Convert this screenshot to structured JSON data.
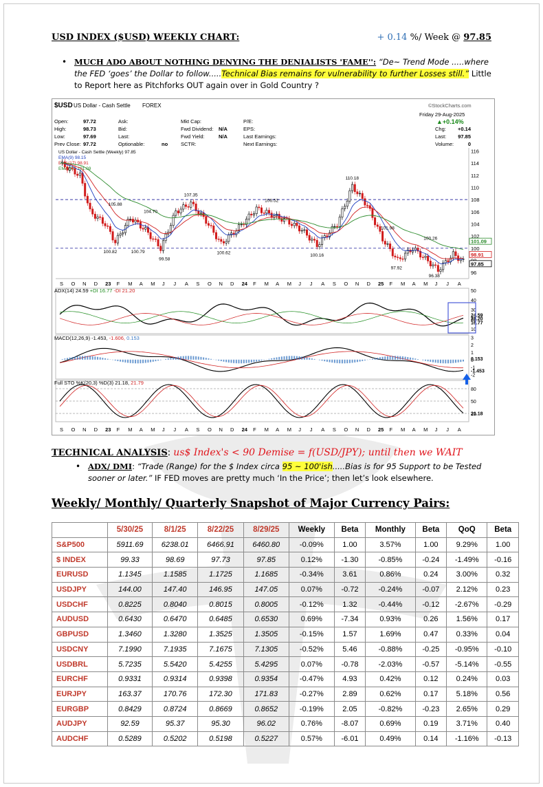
{
  "header": {
    "title": "USD INDEX ($USD) WEEKLY CHART:",
    "change": "+ 0.14",
    "change_suffix": " %/ Week @ ",
    "level": "97.85"
  },
  "intro": {
    "headline": "MUCH ADO ABOUT NOTHING DENYING THE DENIALISTS 'FAME'':",
    "text_italic_1": " “De~ Trend Mode .....where the FED ‘goes’ the Dollar to follow.....",
    "text_highlight": "Technical Bias remains for vulnerability to further Losses still.”",
    "text_plain": "  Little to Report here as Pitchforks OUT again over in Gold Country ?"
  },
  "chart": {
    "symbol": "$USD",
    "name": "US Dollar - Cash Settle",
    "exchange": "FOREX",
    "source": "©StockCharts.com",
    "date": "Friday  29-Aug-2025",
    "pct_change": "▲+0.14%",
    "quote_left": [
      {
        "label": "Open:",
        "value": "97.72"
      },
      {
        "label": "High:",
        "value": "98.73"
      },
      {
        "label": "Low:",
        "value": "97.69"
      },
      {
        "label": "Prev Close:",
        "value": "97.72"
      }
    ],
    "quote_col2": [
      "Ask:",
      "Bid:",
      "Last:",
      "Optionable:"
    ],
    "optionable": "no",
    "quote_col3": [
      {
        "label": "Mkt Cap:",
        "value": ""
      },
      {
        "label": "Fwd Dividend:",
        "value": "N/A"
      },
      {
        "label": "Fwd Yield:",
        "value": "N/A"
      },
      {
        "label": "SCTR:",
        "value": ""
      }
    ],
    "quote_col4": [
      "P/E:",
      "EPS:",
      "Last Earnings:",
      "Next Earnings:"
    ],
    "quote_right": [
      {
        "label": "Chg:",
        "value": "+0.14"
      },
      {
        "label": "Last:",
        "value": "97.85"
      },
      {
        "label": "Volume:",
        "value": "0"
      }
    ],
    "legend": [
      {
        "text": "US Dollar - Cash Settle (Weekly) 97.85",
        "color": "#000000"
      },
      {
        "text": "EMA(9) 98.15",
        "color": "#1f3fbf"
      },
      {
        "text": "EMA(17) 98.91",
        "color": "#d12020"
      },
      {
        "text": "EMA(43) 101.09",
        "color": "#2a8a2a"
      }
    ],
    "price_axis": [
      "116",
      "114",
      "112",
      "110",
      "108",
      "106",
      "104",
      "102",
      "100",
      "98",
      "96"
    ],
    "price_badges": [
      {
        "text": "101.09",
        "color": "#2a8a2a"
      },
      {
        "text": "98.91",
        "color": "#d12020"
      },
      {
        "text": "97.85",
        "color": "#000000"
      }
    ],
    "annotations": [
      "105.88",
      "104.70",
      "107.35",
      "106.52",
      "110.18",
      "101.98",
      "100.82",
      "100.79",
      "99.58",
      "100.62",
      "100.16",
      "97.92",
      "96.38",
      "100.26"
    ],
    "x_labels": [
      "S",
      "O",
      "N",
      "D",
      "23",
      "F",
      "M",
      "A",
      "M",
      "J",
      "J",
      "A",
      "S",
      "O",
      "N",
      "D",
      "24",
      "F",
      "M",
      "A",
      "M",
      "J",
      "J",
      "A",
      "S",
      "O",
      "N",
      "D",
      "25",
      "F",
      "M",
      "A",
      "M",
      "J",
      "J",
      "A"
    ],
    "adx_label": "ADX(14) 24.59",
    "adx_pdi": " +DI 16.77",
    "adx_mdi": " -DI 21.20",
    "adx_axis": [
      "50",
      "40",
      "30",
      "20",
      "10"
    ],
    "adx_badges": [
      "24.59",
      "21.20",
      "16.77"
    ],
    "macd_label": "MACD(12,26,9) -1.453,",
    "macd_signal": " -1.606,",
    "macd_hist": " 0.153",
    "macd_axis": [
      "3",
      "2",
      "1",
      "0",
      "-1",
      "-2"
    ],
    "macd_badges": [
      "0.153",
      "-1.453"
    ],
    "sto_label": "Full STO %K(20,3) %D(3) 21.18,",
    "sto_d": " 21.79",
    "sto_axis": [
      "80",
      "50",
      "20"
    ],
    "sto_badge": "21.18",
    "colors": {
      "up": "#000000",
      "down": "#d11a1a",
      "ema9": "#1f3fbf",
      "ema17": "#d12020",
      "ema43": "#2a8a2a",
      "macd_hist": "#3a78c2",
      "arrow": "#1560e8"
    }
  },
  "technical": {
    "label": "TECHNICAL ANALYSIS",
    "colon": ":  ",
    "note": "us$ Index's < 90 Demise = f(USD/JPY); until then we WAIT"
  },
  "adx_bullet": {
    "label": "ADX/ DMI",
    "colon": ": ",
    "italic_1": "“Trade (Range) for the $ Index circa ",
    "highlight": "95 ~ 100'ish",
    "italic_2": ".....Bias is for 95 Support to be Tested sooner or later.”",
    "plain": " IF FED moves are pretty much ‘In the Price’; then let’s look elsewhere."
  },
  "snapshot": {
    "title": "Weekly/ Monthly/ Quarterly Snapshot of Major Currency Pairs:",
    "headers": [
      "",
      "5/30/25",
      "8/1/25",
      "8/22/25",
      "8/29/25",
      "Weekly",
      "Beta",
      "Monthly",
      "Beta",
      "QoQ",
      "Beta"
    ],
    "rows": [
      [
        "S&P500",
        "5911.69",
        "6238.01",
        "6466.91",
        "6460.80",
        "-0.09%",
        "1.00",
        "3.57%",
        "1.00",
        "9.29%",
        "1.00"
      ],
      [
        "$ INDEX",
        "99.33",
        "98.69",
        "97.73",
        "97.85",
        "0.12%",
        "-1.30",
        "-0.85%",
        "-0.24",
        "-1.49%",
        "-0.16"
      ],
      [
        "EURUSD",
        "1.1345",
        "1.1585",
        "1.1725",
        "1.1685",
        "-0.34%",
        "3.61",
        "0.86%",
        "0.24",
        "3.00%",
        "0.32"
      ],
      [
        "USDJPY",
        "144.00",
        "147.40",
        "146.95",
        "147.05",
        "0.07%",
        "-0.72",
        "-0.24%",
        "-0.07",
        "2.12%",
        "0.23"
      ],
      [
        "USDCHF",
        "0.8225",
        "0.8040",
        "0.8015",
        "0.8005",
        "-0.12%",
        "1.32",
        "-0.44%",
        "-0.12",
        "-2.67%",
        "-0.29"
      ],
      [
        "AUDUSD",
        "0.6430",
        "0.6470",
        "0.6485",
        "0.6530",
        "0.69%",
        "-7.34",
        "0.93%",
        "0.26",
        "1.56%",
        "0.17"
      ],
      [
        "GBPUSD",
        "1.3460",
        "1.3280",
        "1.3525",
        "1.3505",
        "-0.15%",
        "1.57",
        "1.69%",
        "0.47",
        "0.33%",
        "0.04"
      ],
      [
        "USDCNY",
        "7.1990",
        "7.1935",
        "7.1675",
        "7.1305",
        "-0.52%",
        "5.46",
        "-0.88%",
        "-0.25",
        "-0.95%",
        "-0.10"
      ],
      [
        "USDBRL",
        "5.7235",
        "5.5420",
        "5.4255",
        "5.4295",
        "0.07%",
        "-0.78",
        "-2.03%",
        "-0.57",
        "-5.14%",
        "-0.55"
      ],
      [
        "EURCHF",
        "0.9331",
        "0.9314",
        "0.9398",
        "0.9354",
        "-0.47%",
        "4.93",
        "0.42%",
        "0.12",
        "0.24%",
        "0.03"
      ],
      [
        "EURJPY",
        "163.37",
        "170.76",
        "172.30",
        "171.83",
        "-0.27%",
        "2.89",
        "0.62%",
        "0.17",
        "5.18%",
        "0.56"
      ],
      [
        "EURGBP",
        "0.8429",
        "0.8724",
        "0.8669",
        "0.8652",
        "-0.19%",
        "2.05",
        "-0.82%",
        "-0.23",
        "2.65%",
        "0.29"
      ],
      [
        "AUDJPY",
        "92.59",
        "95.37",
        "95.30",
        "96.02",
        "0.76%",
        "-8.07",
        "0.69%",
        "0.19",
        "3.71%",
        "0.40"
      ],
      [
        "AUDCHF",
        "0.5289",
        "0.5202",
        "0.5198",
        "0.5227",
        "0.57%",
        "-6.01",
        "0.49%",
        "0.14",
        "-1.16%",
        "-0.13"
      ]
    ]
  }
}
